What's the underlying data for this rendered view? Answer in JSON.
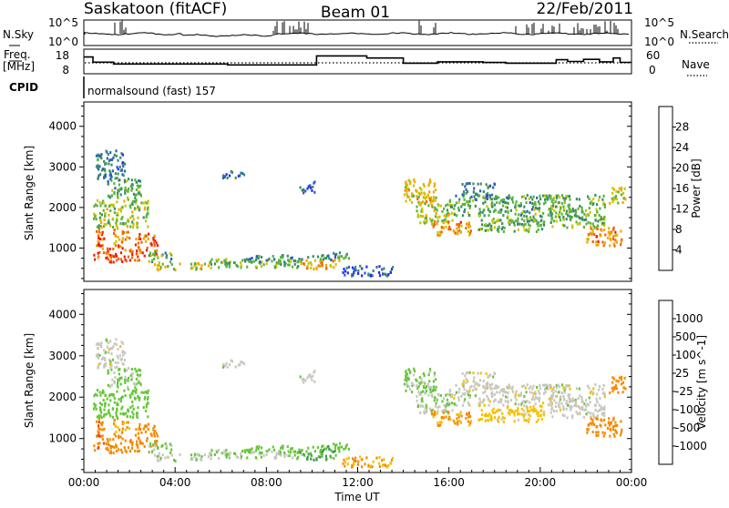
{
  "chart_data": {
    "type": "heatmap",
    "header": {
      "station": "Saskatoon (fitACF)",
      "beam": "Beam 01",
      "date": "22/Feb/2011"
    },
    "nsky_panel": {
      "left_label": "N.Sky",
      "right_label": "N.Search",
      "left_ticks": [
        "10^5",
        "10^0"
      ],
      "right_ticks": [
        "10^5",
        "10^0"
      ]
    },
    "freq_panel": {
      "left_label_line1": "Freq.",
      "left_label_line2": "[MHz]",
      "right_label": "Nave",
      "left_ticks": [
        18,
        8
      ],
      "right_ticks": [
        60,
        0
      ],
      "freq_steps": [
        {
          "t": 0.0,
          "v": 15.6
        },
        {
          "t": 0.4,
          "v": 12.6
        },
        {
          "t": 1.3,
          "v": 11.5
        },
        {
          "t": 6.3,
          "v": 11.0
        },
        {
          "t": 9.7,
          "v": 11.0
        },
        {
          "t": 10.2,
          "v": 16.2
        },
        {
          "t": 12.4,
          "v": 15.0
        },
        {
          "t": 14.0,
          "v": 12.0
        },
        {
          "t": 15.5,
          "v": 12.8
        },
        {
          "t": 17.5,
          "v": 12.4
        },
        {
          "t": 18.5,
          "v": 12.0
        },
        {
          "t": 20.7,
          "v": 14.0
        },
        {
          "t": 21.2,
          "v": 13.0
        },
        {
          "t": 21.9,
          "v": 14.2
        },
        {
          "t": 22.6,
          "v": 12.8
        },
        {
          "t": 23.2,
          "v": 15.0
        },
        {
          "t": 23.5,
          "v": 12.5
        },
        {
          "t": 24.0,
          "v": 12.5
        }
      ]
    },
    "cpid": {
      "label": "CPID",
      "value": "normalsound (fast) 157"
    },
    "x_axis": {
      "title": "Time UT",
      "range": [
        0,
        24
      ],
      "ticks": [
        0,
        4,
        8,
        12,
        16,
        20,
        24
      ],
      "tick_labels": [
        "00:00",
        "04:00",
        "08:00",
        "12:00",
        "16:00",
        "20:00",
        "00:00"
      ]
    },
    "y_axis": {
      "title": "Slant Range [km]",
      "range": [
        180,
        4600
      ],
      "ticks": [
        1000,
        2000,
        3000,
        4000
      ]
    },
    "power": {
      "colorbar_label": "Power [dB]",
      "colorbar_ticks": [
        4,
        8,
        12,
        16,
        20,
        24,
        28
      ],
      "colors": [
        "#1e28ff",
        "#2f5fb8",
        "#3a8c66",
        "#57b33d",
        "#c8c400",
        "#f5a300",
        "#f06400",
        "#e81c0c"
      ]
    },
    "velocity": {
      "colorbar_label": "Velocity [m s^-1]",
      "colorbar_ticks": [
        "1000",
        "500",
        "100",
        "25",
        "-25",
        "-100",
        "-500",
        "-1000"
      ],
      "colors": [
        "#2030b8",
        "#3a70b0",
        "#3e9650",
        "#66c63a",
        "#c8c8c0",
        "#f5c000",
        "#f58a00",
        "#f04a00",
        "#e01010"
      ]
    },
    "regions": [
      {
        "t0": 0.4,
        "t1": 0.9,
        "r0": 700,
        "r1": 1500,
        "p": 28,
        "v": -400
      },
      {
        "t0": 0.9,
        "t1": 2.4,
        "r0": 650,
        "r1": 1100,
        "p": 27,
        "v": -300
      },
      {
        "t0": 1.2,
        "t1": 2.0,
        "r0": 1100,
        "r1": 1500,
        "p": 23,
        "v": -100
      },
      {
        "t0": 2.2,
        "t1": 3.2,
        "r0": 800,
        "r1": 1350,
        "p": 26,
        "v": -200
      },
      {
        "t0": 0.4,
        "t1": 2.8,
        "r0": 1500,
        "r1": 2200,
        "p": 16,
        "v": 60
      },
      {
        "t0": 1.0,
        "t1": 2.5,
        "r0": 2200,
        "r1": 2700,
        "p": 12,
        "v": 30
      },
      {
        "t0": 0.5,
        "t1": 1.8,
        "r0": 2700,
        "r1": 3400,
        "p": 8,
        "v": 0
      },
      {
        "t0": 2.8,
        "t1": 3.8,
        "r0": 650,
        "r1": 900,
        "p": 12,
        "v": 40
      },
      {
        "t0": 3.0,
        "t1": 5.5,
        "r0": 450,
        "r1": 650,
        "p": 18,
        "v": 10
      },
      {
        "t0": 5.5,
        "t1": 9.5,
        "r0": 500,
        "r1": 720,
        "p": 14,
        "v": 20
      },
      {
        "t0": 7.0,
        "t1": 9.8,
        "r0": 650,
        "r1": 820,
        "p": 10,
        "v": 60
      },
      {
        "t0": 9.4,
        "t1": 11.2,
        "r0": 480,
        "r1": 720,
        "p": 22,
        "v": 120
      },
      {
        "t0": 10.0,
        "t1": 11.6,
        "r0": 700,
        "r1": 900,
        "p": 12,
        "v": 80
      },
      {
        "t0": 6.0,
        "t1": 7.0,
        "r0": 2700,
        "r1": 2900,
        "p": 6,
        "v": 0
      },
      {
        "t0": 9.4,
        "t1": 10.1,
        "r0": 2350,
        "r1": 2650,
        "p": 6,
        "v": 0
      },
      {
        "t0": 11.2,
        "t1": 13.5,
        "r0": 300,
        "r1": 560,
        "p": 6,
        "v": -100
      },
      {
        "t0": 14.0,
        "t1": 15.4,
        "r0": 2100,
        "r1": 2700,
        "p": 20,
        "v": 40
      },
      {
        "t0": 14.5,
        "t1": 16.2,
        "r0": 1600,
        "r1": 2100,
        "p": 16,
        "v": 20
      },
      {
        "t0": 15.2,
        "t1": 17.0,
        "r0": 1300,
        "r1": 1650,
        "p": 24,
        "v": -120
      },
      {
        "t0": 16.0,
        "t1": 20.6,
        "r0": 1800,
        "r1": 2300,
        "p": 12,
        "v": 0
      },
      {
        "t0": 17.2,
        "t1": 20.2,
        "r0": 1400,
        "r1": 1800,
        "p": 14,
        "v": -50
      },
      {
        "t0": 20.4,
        "t1": 22.8,
        "r0": 1500,
        "r1": 2300,
        "p": 14,
        "v": 0
      },
      {
        "t0": 22.0,
        "t1": 23.6,
        "r0": 1050,
        "r1": 1500,
        "p": 24,
        "v": -200
      },
      {
        "t0": 23.0,
        "t1": 23.7,
        "r0": 2100,
        "r1": 2500,
        "p": 18,
        "v": -250
      },
      {
        "t0": 16.5,
        "t1": 18.0,
        "r0": 2200,
        "r1": 2600,
        "p": 8,
        "v": 0
      }
    ]
  }
}
